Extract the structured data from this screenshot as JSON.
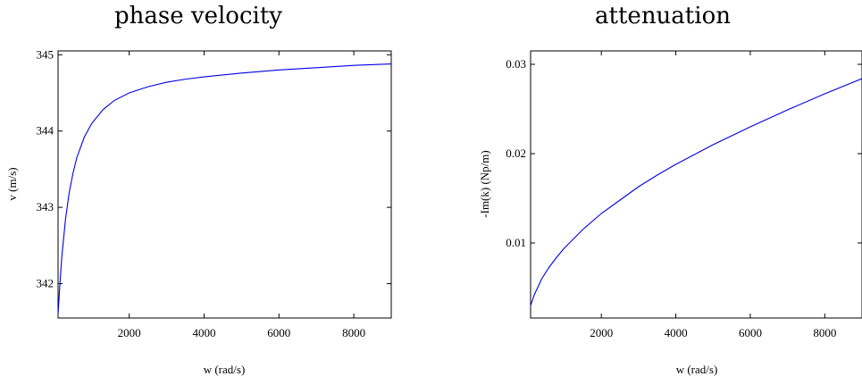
{
  "chart_data": [
    {
      "type": "line",
      "title": "phase velocity",
      "xlabel": "w (rad/s)",
      "ylabel": "v (m/s)",
      "xlim": [
        100,
        9000
      ],
      "ylim": [
        341.55,
        345.05
      ],
      "xticks": [
        2000,
        4000,
        6000,
        8000
      ],
      "xtick_labels": [
        "2000",
        "4000",
        "6000",
        "8000"
      ],
      "yticks": [
        342,
        343,
        344,
        345
      ],
      "ytick_labels": [
        "342",
        "343",
        "344",
        "345"
      ],
      "grid": false,
      "color": "#0000e0",
      "series": [
        {
          "x": [
            100,
            150,
            200,
            300,
            400,
            500,
            600,
            800,
            1000,
            1300,
            1600,
            2000,
            2500,
            3000,
            3500,
            4000,
            5000,
            6000,
            7000,
            8000,
            9000
          ],
          "y": [
            341.6,
            342.0,
            342.35,
            342.85,
            343.2,
            343.45,
            343.65,
            343.92,
            344.1,
            344.28,
            344.4,
            344.5,
            344.58,
            344.64,
            344.68,
            344.71,
            344.76,
            344.8,
            344.83,
            344.86,
            344.88
          ]
        }
      ]
    },
    {
      "type": "line",
      "title": "attenuation",
      "xlabel": "w (rad/s)",
      "ylabel": "-Im(k) (Np/m)",
      "xlim": [
        100,
        9000
      ],
      "ylim": [
        0.0016,
        0.0315
      ],
      "xticks": [
        2000,
        4000,
        6000,
        8000
      ],
      "xtick_labels": [
        "2000",
        "4000",
        "6000",
        "8000"
      ],
      "yticks": [
        0.01,
        0.02,
        0.03
      ],
      "ytick_labels": [
        "0.01",
        "0.02",
        "0.03"
      ],
      "grid": false,
      "color": "#0000e0",
      "series": [
        {
          "x": [
            100,
            200,
            400,
            600,
            800,
            1000,
            1500,
            2000,
            2500,
            3000,
            3500,
            4000,
            5000,
            6000,
            7000,
            8000,
            9000
          ],
          "y": [
            0.003,
            0.0042,
            0.006,
            0.0073,
            0.0084,
            0.0094,
            0.0115,
            0.0133,
            0.0148,
            0.0163,
            0.0176,
            0.0188,
            0.021,
            0.023,
            0.0249,
            0.0267,
            0.0284
          ]
        }
      ]
    }
  ]
}
